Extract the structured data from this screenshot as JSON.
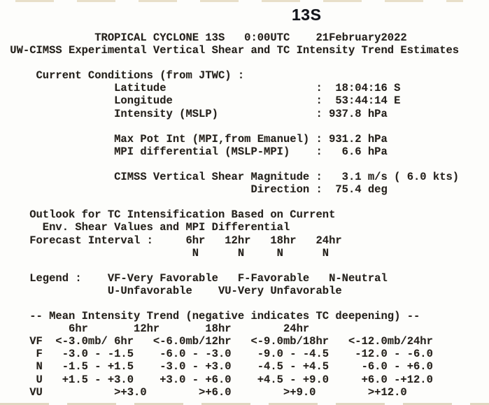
{
  "storm": {
    "id": "13S",
    "header_name": "TROPICAL CYCLONE 13S",
    "header_time": "0:00UTC",
    "header_date": "21February2022"
  },
  "product_title": "UW-CIMSS Experimental Vertical Shear and TC Intensity Trend Estimates",
  "current_conditions": {
    "heading": "Current Conditions (from JTWC) :",
    "latitude_label": "Latitude",
    "latitude": "18:04:16 S",
    "longitude_label": "Longitude",
    "longitude": "53:44:14 E",
    "intensity_label": "Intensity (MSLP)",
    "intensity": "937.8 hPa",
    "max_pot_int_label": "Max Pot Int (MPI,from Emanuel)",
    "max_pot_int": "931.2 hPa",
    "mpi_differential_label": "MPI differential (MSLP-MPI)",
    "mpi_differential": "6.6 hPa",
    "shear_magnitude_label": "CIMSS Vertical Shear Magnitude",
    "shear_magnitude": "3.1 m/s ( 6.0 kts)",
    "shear_direction_label": "Direction",
    "shear_direction": "75.4 deg"
  },
  "outlook": {
    "heading_line1": "Outlook for TC Intensification Based on Current",
    "heading_line2": "Env. Shear Values and MPI Differential",
    "forecast_interval_label": "Forecast Interval :",
    "intervals": [
      "6hr",
      "12hr",
      "18hr",
      "24hr"
    ],
    "values": [
      "N",
      "N",
      "N",
      "N"
    ]
  },
  "legend": {
    "label": "Legend :",
    "items": [
      "VF-Very Favorable",
      "F-Favorable",
      "N-Neutral",
      "U-Unfavorable",
      "VU-Very Unfavorable"
    ]
  },
  "trend_table": {
    "title": "-- Mean Intensity Trend (negative indicates TC deepening) --",
    "columns": [
      "6hr",
      "12hr",
      "18hr",
      "24hr"
    ],
    "rows": [
      {
        "category": "VF",
        "values": [
          "<-3.0mb/ 6hr",
          "<-6.0mb/12hr",
          "<-9.0mb/18hr",
          "<-12.0mb/24hr"
        ]
      },
      {
        "category": "F",
        "values": [
          "-3.0 - -1.5",
          "-6.0 - -3.0",
          "-9.0 - -4.5",
          "-12.0 - -6.0"
        ]
      },
      {
        "category": "N",
        "values": [
          "-1.5 - +1.5",
          "-3.0 - +3.0",
          "-4.5 - +4.5",
          "-6.0 - +6.0"
        ]
      },
      {
        "category": "U",
        "values": [
          "+1.5 - +3.0",
          "+3.0 - +6.0",
          "+4.5 - +9.0",
          "+6.0 -+12.0"
        ]
      },
      {
        "category": "VU",
        "values": [
          ">+3.0",
          ">+6.0",
          ">+9.0",
          ">+12.0"
        ]
      }
    ]
  },
  "colors": {
    "text": "#24211d",
    "title": "#12151b",
    "background": "#fdfdfb"
  },
  "report_lines": [
    {
      "name": "header-storm-line",
      "text": "              TROPICAL CYCLONE 13S   0:00UTC    21February2022"
    },
    {
      "name": "header-product-line",
      "text": " UW-CIMSS Experimental Vertical Shear and TC Intensity Trend Estimates"
    },
    {
      "name": "blank-line",
      "text": ""
    },
    {
      "name": "current-conditions-heading",
      "text": "     Current Conditions (from JTWC) :"
    },
    {
      "name": "latitude-row",
      "text": "                 Latitude                       :  18:04:16 S"
    },
    {
      "name": "longitude-row",
      "text": "                 Longitude                      :  53:44:14 E"
    },
    {
      "name": "intensity-row",
      "text": "                 Intensity (MSLP)               : 937.8 hPa"
    },
    {
      "name": "blank-line",
      "text": ""
    },
    {
      "name": "max-pot-int-row",
      "text": "                 Max Pot Int (MPI,from Emanuel) : 931.2 hPa"
    },
    {
      "name": "mpi-differential-row",
      "text": "                 MPI differential (MSLP-MPI)    :   6.6 hPa"
    },
    {
      "name": "blank-line",
      "text": ""
    },
    {
      "name": "shear-magnitude-row",
      "text": "                 CIMSS Vertical Shear Magnitude :   3.1 m/s ( 6.0 kts)"
    },
    {
      "name": "shear-direction-row",
      "text": "                                      Direction :  75.4 deg"
    },
    {
      "name": "blank-line",
      "text": ""
    },
    {
      "name": "outlook-heading-1",
      "text": "    Outlook for TC Intensification Based on Current"
    },
    {
      "name": "outlook-heading-2",
      "text": "      Env. Shear Values and MPI Differential"
    },
    {
      "name": "forecast-interval-row",
      "text": "    Forecast Interval :     6hr   12hr   18hr   24hr"
    },
    {
      "name": "forecast-values-row",
      "text": "                             N      N     N      N"
    },
    {
      "name": "blank-line",
      "text": ""
    },
    {
      "name": "legend-line-1",
      "text": "    Legend :    VF-Very Favorable   F-Favorable   N-Neutral"
    },
    {
      "name": "legend-line-2",
      "text": "                U-Unfavorable    VU-Very Unfavorable"
    },
    {
      "name": "blank-line",
      "text": ""
    },
    {
      "name": "trend-table-title",
      "text": "    -- Mean Intensity Trend (negative indicates TC deepening) --"
    },
    {
      "name": "trend-table-columns",
      "text": "          6hr       12hr       18hr        24hr"
    },
    {
      "name": "trend-row-vf",
      "text": "    VF  <-3.0mb/ 6hr   <-6.0mb/12hr   <-9.0mb/18hr   <-12.0mb/24hr"
    },
    {
      "name": "trend-row-f",
      "text": "     F   -3.0 - -1.5    -6.0 - -3.0    -9.0 - -4.5    -12.0 - -6.0"
    },
    {
      "name": "trend-row-n",
      "text": "     N   -1.5 - +1.5    -3.0 - +3.0    -4.5 - +4.5     -6.0 - +6.0"
    },
    {
      "name": "trend-row-u",
      "text": "     U   +1.5 - +3.0    +3.0 - +6.0    +4.5 - +9.0     +6.0 -+12.0"
    },
    {
      "name": "trend-row-vu",
      "text": "    VU           >+3.0        >+6.0        >+9.0        >+12.0"
    }
  ]
}
